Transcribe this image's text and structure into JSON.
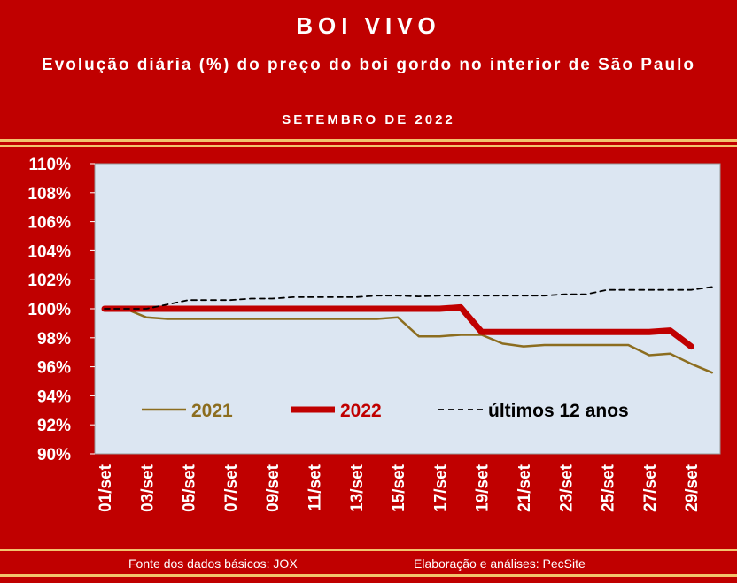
{
  "chart_data": {
    "type": "line",
    "title": "BOI VIVO",
    "subtitle": "Evolução diária (%) do preço do boi gordo no interior de São Paulo",
    "period": "SETEMBRO DE 2022",
    "categories": [
      "01/set",
      null,
      "03/set",
      null,
      "05/set",
      null,
      "07/set",
      null,
      "09/set",
      null,
      "11/set",
      null,
      "13/set",
      null,
      "15/set",
      null,
      "17/set",
      null,
      "19/set",
      null,
      "21/set",
      null,
      "23/set",
      null,
      "25/set",
      null,
      "27/set",
      null,
      "29/set",
      null
    ],
    "series": [
      {
        "name": "2021",
        "color": "#8c6d1f",
        "values": [
          100,
          100,
          99.4,
          99.3,
          99.3,
          99.3,
          99.3,
          99.3,
          99.3,
          99.3,
          99.3,
          99.3,
          99.3,
          99.3,
          99.4,
          98.1,
          98.1,
          98.2,
          98.2,
          97.6,
          97.4,
          97.5,
          97.5,
          97.5,
          97.5,
          97.5,
          96.8,
          96.9,
          96.2,
          95.6
        ]
      },
      {
        "name": "2022",
        "color": "#c00000",
        "values": [
          100,
          100,
          100,
          100,
          100,
          100,
          100,
          100,
          100,
          100,
          100,
          100,
          100,
          100,
          100,
          100,
          100,
          100.1,
          98.4,
          98.4,
          98.4,
          98.4,
          98.4,
          98.4,
          98.4,
          98.4,
          98.4,
          98.5,
          97.4,
          null
        ]
      },
      {
        "name": "últimos 12 anos",
        "color": "#000000",
        "values": [
          100,
          100,
          100,
          100.3,
          100.6,
          100.6,
          100.6,
          100.7,
          100.7,
          100.8,
          100.8,
          100.8,
          100.8,
          100.9,
          100.9,
          100.85,
          100.9,
          100.9,
          100.9,
          100.9,
          100.9,
          100.9,
          101,
          101,
          101.3,
          101.3,
          101.3,
          101.3,
          101.3,
          101.5
        ]
      }
    ],
    "ylim": [
      90,
      110
    ],
    "yticks": [
      {
        "value": 90,
        "label": "90%"
      },
      {
        "value": 92,
        "label": "92%"
      },
      {
        "value": 94,
        "label": "94%"
      },
      {
        "value": 96,
        "label": "96%"
      },
      {
        "value": 98,
        "label": "98%"
      },
      {
        "value": 100,
        "label": "100%"
      },
      {
        "value": 102,
        "label": "102%"
      },
      {
        "value": 104,
        "label": "104%"
      },
      {
        "value": 106,
        "label": "106%"
      },
      {
        "value": 108,
        "label": "108%"
      },
      {
        "value": 110,
        "label": "110%"
      }
    ],
    "source": "Fonte dos dados básicos: JOX",
    "credit": "Elaboração e análises: PecSite"
  }
}
